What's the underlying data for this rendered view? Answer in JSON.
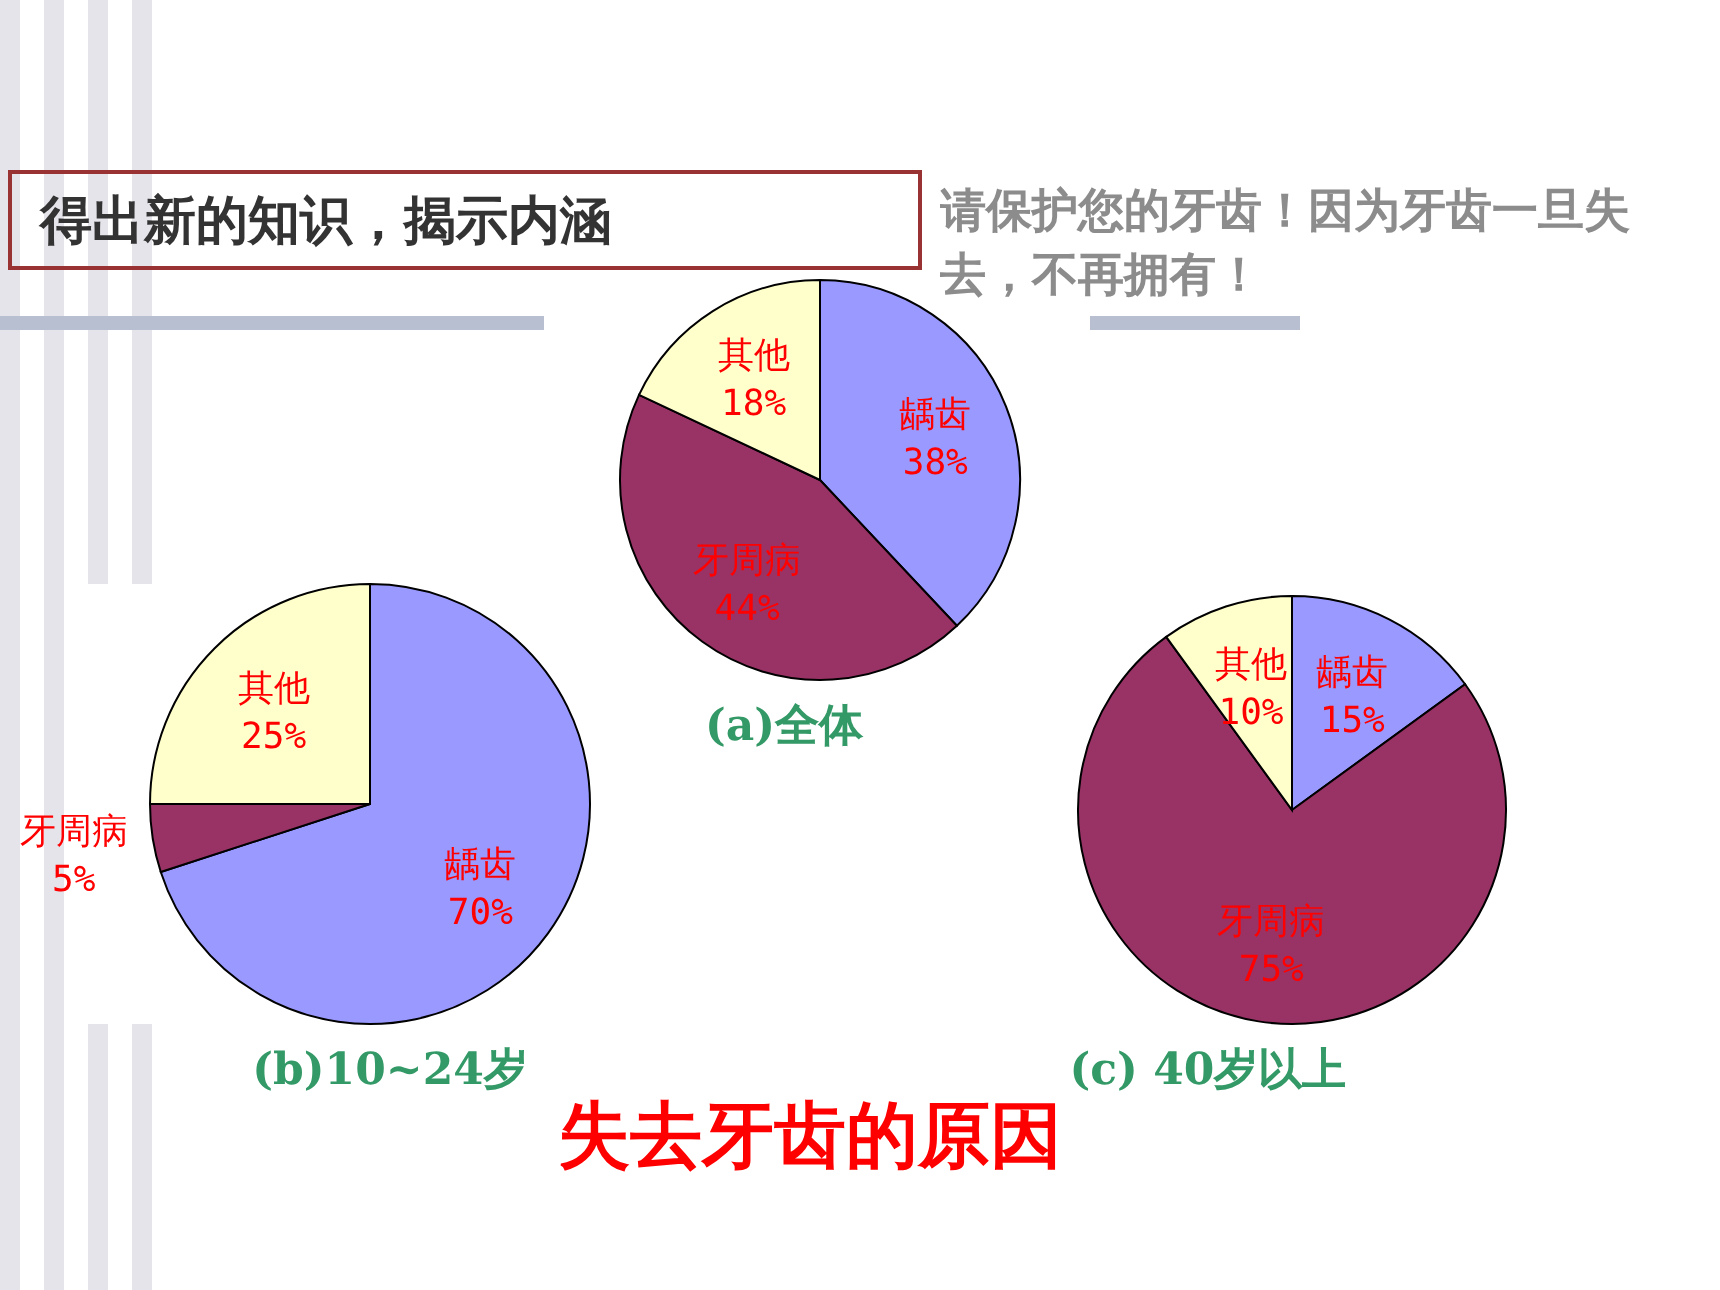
{
  "chart_data": [
    {
      "type": "pie",
      "title": "(a)全体",
      "categories": [
        "龋齿",
        "牙周病",
        "其他"
      ],
      "values": [
        38,
        44,
        18
      ],
      "colors": [
        "#9999ff",
        "#993366",
        "#ffffcc"
      ],
      "value_labels": [
        "38%",
        "44%",
        "18%"
      ]
    },
    {
      "type": "pie",
      "title": "(b)10~24岁",
      "categories": [
        "龋齿",
        "牙周病",
        "其他"
      ],
      "values": [
        70,
        5,
        25
      ],
      "colors": [
        "#9999ff",
        "#993366",
        "#ffffcc"
      ],
      "value_labels": [
        "70%",
        "5%",
        "25%"
      ]
    },
    {
      "type": "pie",
      "title": "(c) 40岁以上",
      "categories": [
        "龋齿",
        "牙周病",
        "其他"
      ],
      "values": [
        15,
        75,
        10
      ],
      "colors": [
        "#9999ff",
        "#993366",
        "#ffffcc"
      ],
      "value_labels": [
        "15%",
        "75%",
        "10%"
      ]
    },
    {
      "type": "other",
      "annotations": [
        "得出新的知识，揭示内涵",
        "请保护您的牙齿！因为牙齿一旦失去，不再拥有！",
        "失去牙齿的原因"
      ]
    }
  ]
}
